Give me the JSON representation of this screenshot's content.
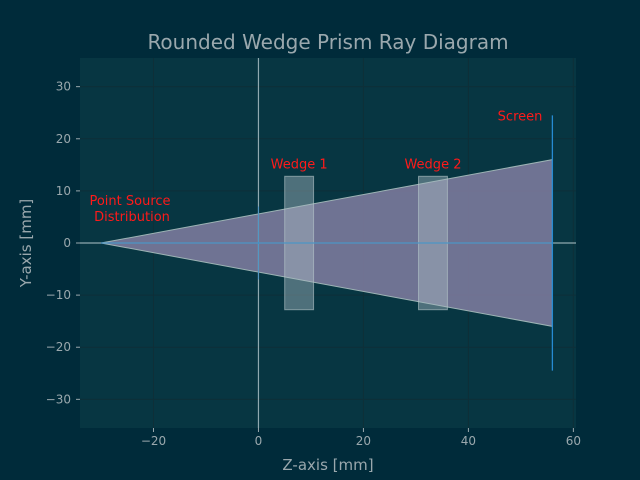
{
  "chart_data": {
    "type": "diagram",
    "title": "Rounded Wedge Prism Ray Diagram",
    "xlabel": "Z-axis [mm]",
    "ylabel": "Y-axis [mm]",
    "xlim": [
      -34,
      60.5
    ],
    "ylim": [
      -35.5,
      35.5
    ],
    "xticks": [
      -20,
      0,
      20,
      40,
      60
    ],
    "yticks": [
      -30,
      -20,
      -10,
      0,
      10,
      20,
      30
    ],
    "xtick_labels": [
      "−20",
      "0",
      "20",
      "40",
      "60"
    ],
    "ytick_labels": [
      "−30",
      "−20",
      "−10",
      "0",
      "10",
      "20",
      "30"
    ],
    "grid": true,
    "colors": {
      "background": "#002b3a",
      "plot_area": "#073642",
      "grid": "#0e2f38",
      "axis_lines": "#8fa9b0",
      "beam_fill": "#7b7a9c",
      "beam_edge": "#9db4b5",
      "wedge_fill": "#a6b8c2",
      "screen": "#268bd2",
      "optical_axis": "#268bd2",
      "annotation": "#ff1a1a",
      "text": "#9aa8ad"
    },
    "source": {
      "z": -30,
      "y": 0,
      "label": "Point Source\nDistribution"
    },
    "beam": {
      "z_start": -30,
      "z_end": 56,
      "half_height_end": 16
    },
    "wedges": [
      {
        "name": "Wedge 1",
        "z_min": 5,
        "z_max": 10.5,
        "y_min": -12.8,
        "y_max": 12.8
      },
      {
        "name": "Wedge 2",
        "z_min": 30.5,
        "z_max": 36,
        "y_min": -12.8,
        "y_max": 12.8
      }
    ],
    "screen": {
      "label": "Screen",
      "z": 56,
      "y_min": -24.5,
      "y_max": 24.5
    }
  }
}
